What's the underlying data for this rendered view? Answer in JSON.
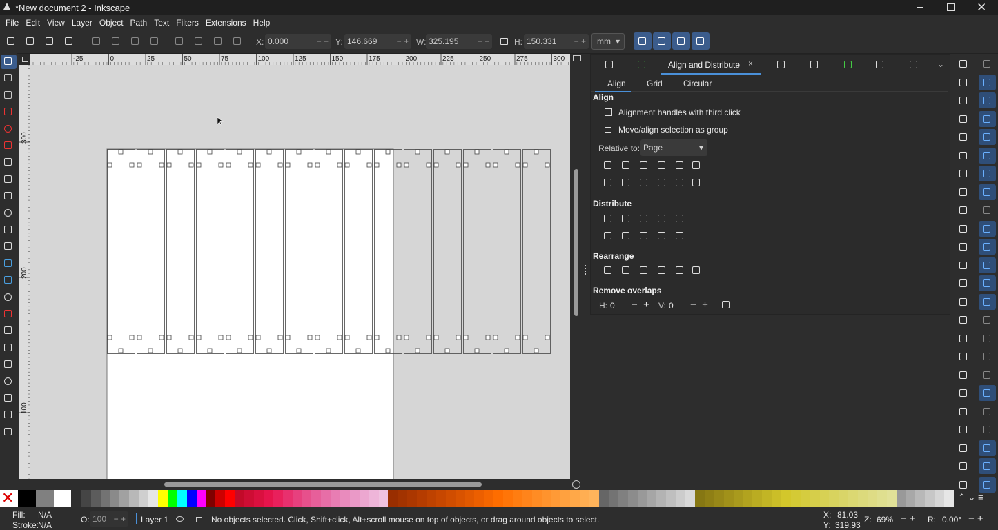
{
  "window": {
    "title": "*New document 2 - Inkscape"
  },
  "menu": [
    "File",
    "Edit",
    "View",
    "Layer",
    "Object",
    "Path",
    "Text",
    "Filters",
    "Extensions",
    "Help"
  ],
  "toolbar": {
    "x_label": "X:",
    "x": "0.000",
    "y_label": "Y:",
    "y": "146.669",
    "w_label": "W:",
    "w": "325.195",
    "h_label": "H:",
    "h": "150.331",
    "unit": "mm"
  },
  "rulers": {
    "top": [
      "-25",
      "0",
      "25",
      "50",
      "75",
      "100",
      "125",
      "150",
      "175",
      "200",
      "225",
      "250",
      "275",
      "300"
    ],
    "left": [
      "300",
      "200",
      "100"
    ]
  },
  "dock": {
    "tab": "Align and Distribute",
    "subtabs": [
      "Align",
      "Grid",
      "Circular"
    ],
    "align_heading": "Align",
    "options": [
      "Alignment handles with third click",
      "Move/align selection as group"
    ],
    "relative_label": "Relative to:",
    "relative_value": "Page",
    "distribute_heading": "Distribute",
    "rearrange_heading": "Rearrange",
    "overlaps_heading": "Remove overlaps",
    "h_label": "H:",
    "h_value": "0",
    "v_label": "V:",
    "v_value": "0"
  },
  "status": {
    "fill_label": "Fill:",
    "fill": "N/A",
    "stroke_label": "Stroke:",
    "stroke": "N/A",
    "opacity_label": "O:",
    "opacity": "100",
    "layer": "Layer 1",
    "message": "No objects selected. Click, Shift+click, Alt+scroll mouse on top of objects, or drag around objects to select.",
    "cursor_x_label": "X:",
    "cursor_x": "81.03",
    "cursor_y_label": "Y:",
    "cursor_y": "319.93",
    "zoom_label": "Z:",
    "zoom": "69%",
    "rotation_label": "R:",
    "rotation": "0.00°"
  }
}
